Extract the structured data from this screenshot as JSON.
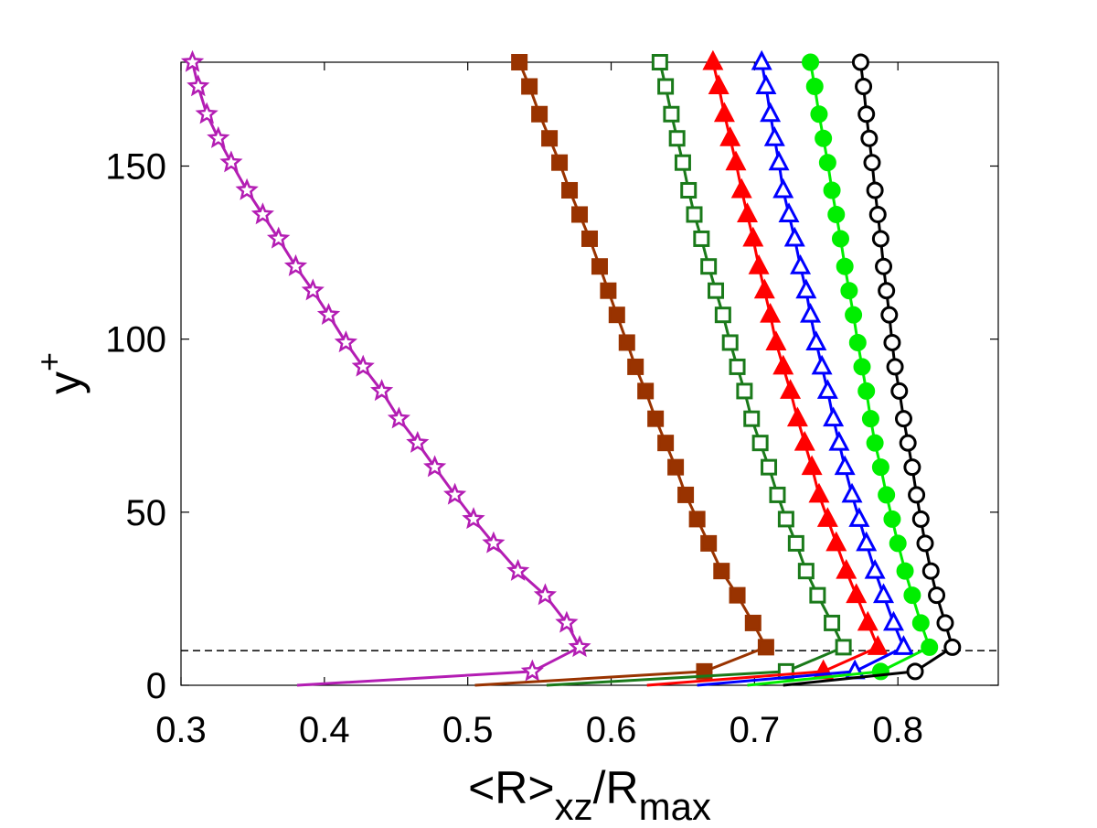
{
  "chart_data": {
    "type": "line",
    "xlabel": {
      "main": "<R>",
      "sub1": "xz",
      "mid": "/R",
      "sub2": "max"
    },
    "ylabel": {
      "main": "y",
      "sup": "+"
    },
    "xlim": [
      0.3,
      0.87
    ],
    "ylim": [
      0,
      180
    ],
    "xticks": [
      0.3,
      0.4,
      0.5,
      0.6,
      0.7,
      0.8
    ],
    "xtick_labels": [
      "0.3",
      "0.4",
      "0.5",
      "0.6",
      "0.7",
      "0.8"
    ],
    "yticks": [
      0,
      50,
      100,
      150
    ],
    "ytick_labels": [
      "0",
      "50",
      "100",
      "150"
    ],
    "reference_line": {
      "y": 10,
      "style": "dashed",
      "color": "#000000"
    },
    "y_values": [
      0,
      4,
      11,
      18,
      26,
      33,
      41,
      48,
      55,
      63,
      70,
      77,
      85,
      92,
      99,
      107,
      114,
      121,
      129,
      136,
      143,
      151,
      158,
      165,
      173,
      180
    ],
    "series": [
      {
        "name": "magenta-stars",
        "color": "#b31db3",
        "marker": "star",
        "filled": false,
        "x": [
          0.381,
          0.545,
          0.578,
          0.569,
          0.554,
          0.535,
          0.518,
          0.504,
          0.491,
          0.477,
          0.465,
          0.452,
          0.44,
          0.427,
          0.415,
          0.403,
          0.392,
          0.38,
          0.368,
          0.357,
          0.346,
          0.335,
          0.326,
          0.318,
          0.312,
          0.308
        ]
      },
      {
        "name": "brown-filled-squares",
        "color": "#993300",
        "marker": "square",
        "filled": true,
        "x": [
          0.505,
          0.665,
          0.708,
          0.699,
          0.688,
          0.677,
          0.668,
          0.66,
          0.652,
          0.645,
          0.638,
          0.631,
          0.624,
          0.617,
          0.611,
          0.604,
          0.598,
          0.592,
          0.585,
          0.578,
          0.571,
          0.564,
          0.557,
          0.55,
          0.543,
          0.536
        ]
      },
      {
        "name": "green-open-squares",
        "color": "#1a7a1a",
        "marker": "square",
        "filled": false,
        "x": [
          0.555,
          0.722,
          0.762,
          0.754,
          0.744,
          0.736,
          0.729,
          0.722,
          0.716,
          0.71,
          0.704,
          0.698,
          0.693,
          0.688,
          0.683,
          0.678,
          0.673,
          0.668,
          0.663,
          0.658,
          0.654,
          0.65,
          0.646,
          0.642,
          0.638,
          0.634
        ]
      },
      {
        "name": "red-filled-triangles",
        "color": "#ff0000",
        "marker": "triangle",
        "filled": true,
        "x": [
          0.625,
          0.748,
          0.786,
          0.779,
          0.771,
          0.764,
          0.757,
          0.751,
          0.745,
          0.74,
          0.735,
          0.73,
          0.725,
          0.72,
          0.715,
          0.711,
          0.707,
          0.703,
          0.699,
          0.695,
          0.691,
          0.687,
          0.683,
          0.679,
          0.675,
          0.671
        ]
      },
      {
        "name": "blue-open-triangles",
        "color": "#0000ff",
        "marker": "triangle",
        "filled": false,
        "x": [
          0.66,
          0.77,
          0.804,
          0.797,
          0.79,
          0.784,
          0.778,
          0.773,
          0.768,
          0.763,
          0.759,
          0.755,
          0.751,
          0.747,
          0.743,
          0.739,
          0.736,
          0.732,
          0.728,
          0.724,
          0.72,
          0.717,
          0.714,
          0.711,
          0.708,
          0.705
        ]
      },
      {
        "name": "green-filled-circles",
        "color": "#00ee00",
        "marker": "circle",
        "filled": true,
        "x": [
          0.695,
          0.788,
          0.822,
          0.816,
          0.81,
          0.805,
          0.8,
          0.796,
          0.792,
          0.788,
          0.784,
          0.781,
          0.778,
          0.775,
          0.772,
          0.769,
          0.766,
          0.763,
          0.76,
          0.757,
          0.754,
          0.751,
          0.748,
          0.745,
          0.742,
          0.739
        ]
      },
      {
        "name": "black-open-circles",
        "color": "#000000",
        "marker": "circle",
        "filled": false,
        "x": [
          0.72,
          0.812,
          0.838,
          0.833,
          0.827,
          0.823,
          0.819,
          0.816,
          0.813,
          0.81,
          0.807,
          0.804,
          0.801,
          0.798,
          0.796,
          0.794,
          0.792,
          0.79,
          0.788,
          0.786,
          0.784,
          0.782,
          0.78,
          0.778,
          0.776,
          0.774
        ]
      }
    ]
  }
}
